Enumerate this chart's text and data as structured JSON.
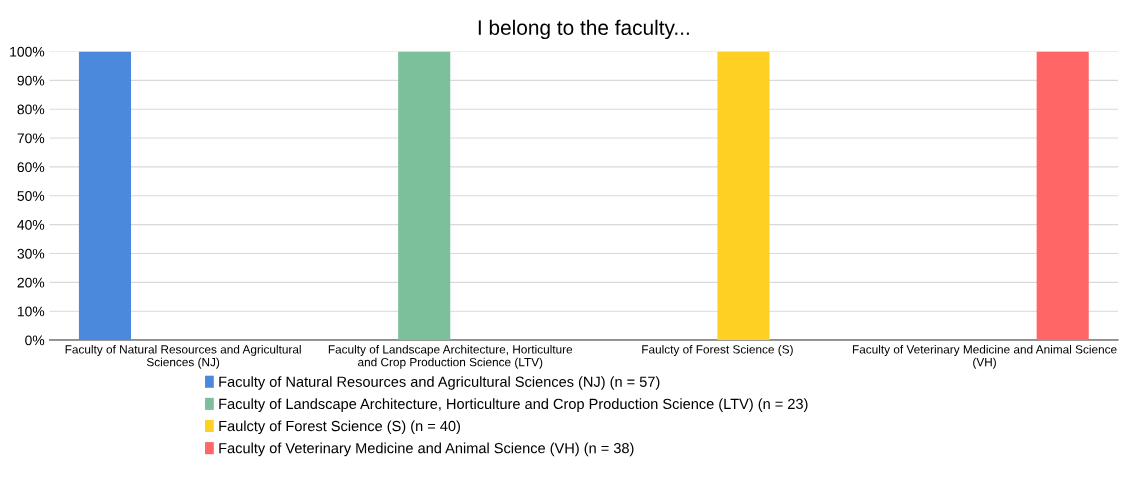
{
  "chart_data": {
    "type": "bar",
    "title": "I belong to the faculty...",
    "categories": [
      "Faculty of Natural Resources and Agricultural Sciences (NJ)",
      "Faculty of Landscape Architecture, Horticulture and Crop Production Science (LTV)",
      "Faulcty of Forest Science (S)",
      "Faculty of Veterinary Medicine and Animal Science (VH)"
    ],
    "series": [
      {
        "name": "Faculty of Natural Resources and Agricultural Sciences (NJ) (n = 57)",
        "color": "#4a89dc",
        "values": [
          100,
          null,
          null,
          null
        ]
      },
      {
        "name": "Faculty of Landscape Architecture, Horticulture and Crop Production Science (LTV) (n = 23)",
        "color": "#7bc09a",
        "values": [
          null,
          100,
          null,
          null
        ]
      },
      {
        "name": "Faulcty of Forest Science (S) (n = 40)",
        "color": "#fdd023",
        "values": [
          null,
          null,
          100,
          null
        ]
      },
      {
        "name": "Faculty of Veterinary Medicine and Animal Science (VH) (n = 38)",
        "color": "#ff6666",
        "values": [
          null,
          null,
          null,
          100
        ]
      }
    ],
    "ylim": [
      0,
      100
    ],
    "yticks": [
      {
        "value": 0,
        "label": "0%"
      },
      {
        "value": 10,
        "label": "10%"
      },
      {
        "value": 20,
        "label": "20%"
      },
      {
        "value": 30,
        "label": "30%"
      },
      {
        "value": 40,
        "label": "40%"
      },
      {
        "value": 50,
        "label": "50%"
      },
      {
        "value": 60,
        "label": "60%"
      },
      {
        "value": 70,
        "label": "70%"
      },
      {
        "value": 80,
        "label": "80%"
      },
      {
        "value": 90,
        "label": "90%"
      },
      {
        "value": 100,
        "label": "100%"
      }
    ],
    "grid": "y",
    "legend": "bottom"
  }
}
